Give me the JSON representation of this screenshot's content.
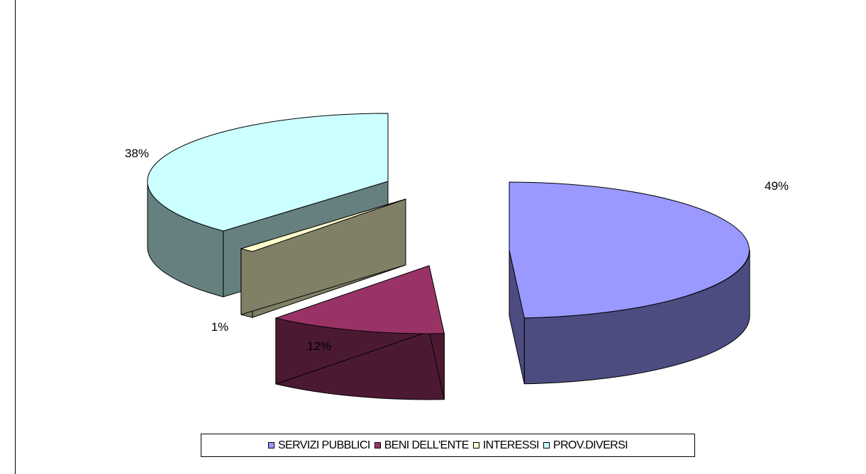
{
  "chart_data": {
    "type": "pie",
    "style": "3d-exploded",
    "categories": [
      "SERVIZI PUBBLICI",
      "BENI DELL'ENTE",
      "INTERESSI",
      "PROV.DIVERSI"
    ],
    "values": [
      49,
      12,
      1,
      38
    ],
    "labels": [
      "49%",
      "12%",
      "1%",
      "38%"
    ],
    "colors": [
      "#9999FF",
      "#993366",
      "#FFFFCC",
      "#CCFFFF"
    ],
    "side_colors": [
      "#4C4C80",
      "#4C1933",
      "#808066",
      "#668080"
    ],
    "legend_position": "bottom"
  }
}
